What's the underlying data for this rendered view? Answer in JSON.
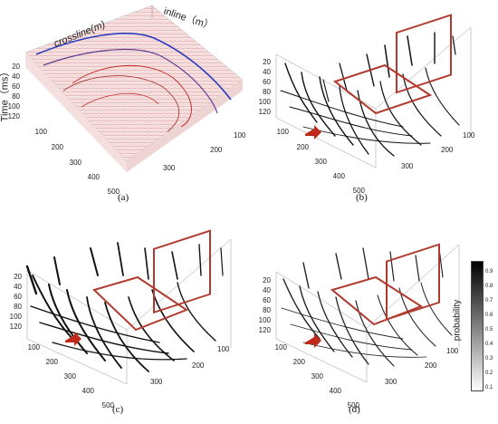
{
  "figure": {
    "panels": [
      {
        "label": "(a)",
        "time_axis_title": "Time（ms）",
        "crossline_title": "crossline(m)",
        "inline_title": "inline（m）",
        "time_ticks": [
          "20",
          "40",
          "60",
          "80",
          "100",
          "120"
        ],
        "crossline_ticks": [
          "100",
          "200",
          "300",
          "400",
          "500"
        ],
        "inline_ticks": [
          "100",
          "200",
          "300"
        ]
      },
      {
        "label": "(b)",
        "time_ticks": [
          "20",
          "40",
          "60",
          "80",
          "100",
          "120"
        ],
        "crossline_ticks": [
          "100",
          "200",
          "300",
          "400",
          "500"
        ],
        "inline_ticks": [
          "100",
          "200",
          "300"
        ]
      },
      {
        "label": "(c)",
        "time_ticks": [
          "20",
          "40",
          "60",
          "80",
          "100",
          "120"
        ],
        "crossline_ticks": [
          "100",
          "200",
          "300",
          "400",
          "500"
        ],
        "inline_ticks": [
          "100",
          "200",
          "300"
        ]
      },
      {
        "label": "(d)",
        "time_ticks": [
          "20",
          "40",
          "60",
          "80",
          "100",
          "120"
        ],
        "crossline_ticks": [
          "100",
          "200",
          "300",
          "400",
          "500"
        ],
        "inline_ticks": [
          "100",
          "200",
          "300"
        ]
      }
    ],
    "colorbar": {
      "title": "probability",
      "ticks": [
        "0.9",
        "0.8",
        "0.7",
        "0.6",
        "0.5",
        "0.4",
        "0.3",
        "0.2",
        "0.1"
      ],
      "colors": {
        "high": "#000000",
        "low": "#ffffff"
      }
    },
    "colors": {
      "box": "#b03a2e",
      "arrow": "#c0281a",
      "seismic_pos": "#d9534f",
      "seismic_neg": "#2e3bbd"
    }
  }
}
